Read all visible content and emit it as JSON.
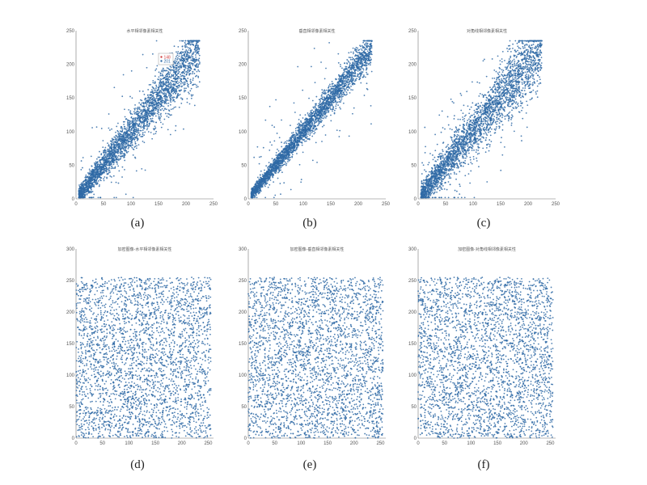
{
  "colors": {
    "points": "#2f6aa6",
    "axis": "#777777",
    "legend_border": "#999999",
    "legend_red": "#d04040",
    "legend_blue": "#2f6aa6"
  },
  "captions": [
    "(a)",
    "(b)",
    "(c)",
    "(d)",
    "(e)",
    "(f)"
  ],
  "chart_data": [
    {
      "type": "scatter",
      "panel": "a",
      "title": "水平相邻像素相关性",
      "x_ticks": [
        "0",
        "50",
        "100",
        "150",
        "200",
        "250"
      ],
      "y_ticks": [
        "0",
        "50",
        "100",
        "150",
        "200",
        "250"
      ],
      "xlim": [
        0,
        250
      ],
      "ylim": [
        0,
        250
      ],
      "pattern": "diagonal",
      "spread": 16,
      "outlier_fraction": 0.08,
      "n_points": 3000,
      "legend": [
        "148",
        "201"
      ],
      "legend_placement": "top-right"
    },
    {
      "type": "scatter",
      "panel": "b",
      "title": "垂直相邻像素相关性",
      "x_ticks": [
        "0",
        "50",
        "100",
        "150",
        "200",
        "250"
      ],
      "y_ticks": [
        "0",
        "50",
        "100",
        "150",
        "200",
        "250"
      ],
      "xlim": [
        0,
        250
      ],
      "ylim": [
        0,
        250
      ],
      "pattern": "diagonal",
      "spread": 10,
      "outlier_fraction": 0.04,
      "n_points": 3000
    },
    {
      "type": "scatter",
      "panel": "c",
      "title": "对角线相邻像素相关性",
      "x_ticks": [
        "0",
        "50",
        "100",
        "150",
        "200",
        "250"
      ],
      "y_ticks": [
        "0",
        "50",
        "100",
        "150",
        "200",
        "250"
      ],
      "xlim": [
        0,
        250
      ],
      "ylim": [
        0,
        250
      ],
      "pattern": "diagonal",
      "spread": 20,
      "outlier_fraction": 0.1,
      "n_points": 3000
    },
    {
      "type": "scatter",
      "panel": "d",
      "title": "加密图像-水平相邻像素相关性",
      "x_ticks": [
        "0",
        "50",
        "100",
        "150",
        "200",
        "250"
      ],
      "y_ticks": [
        "0",
        "50",
        "100",
        "150",
        "200",
        "250",
        "300"
      ],
      "xlim": [
        0,
        260
      ],
      "ylim": [
        0,
        300
      ],
      "pattern": "uniform",
      "value_range": [
        0,
        255
      ],
      "n_points": 3000
    },
    {
      "type": "scatter",
      "panel": "e",
      "title": "加密图像-垂直相邻像素相关性",
      "x_ticks": [
        "0",
        "50",
        "100",
        "150",
        "200",
        "250"
      ],
      "y_ticks": [
        "0",
        "50",
        "100",
        "150",
        "200",
        "250",
        "300"
      ],
      "xlim": [
        0,
        260
      ],
      "ylim": [
        0,
        300
      ],
      "pattern": "uniform",
      "value_range": [
        0,
        255
      ],
      "n_points": 3000
    },
    {
      "type": "scatter",
      "panel": "f",
      "title": "加密图像-对角线相邻像素相关性",
      "x_ticks": [
        "0",
        "50",
        "100",
        "150",
        "200",
        "250"
      ],
      "y_ticks": [
        "0",
        "50",
        "100",
        "150",
        "200",
        "250",
        "300"
      ],
      "xlim": [
        0,
        260
      ],
      "ylim": [
        0,
        300
      ],
      "pattern": "uniform",
      "value_range": [
        0,
        255
      ],
      "n_points": 3000
    }
  ]
}
